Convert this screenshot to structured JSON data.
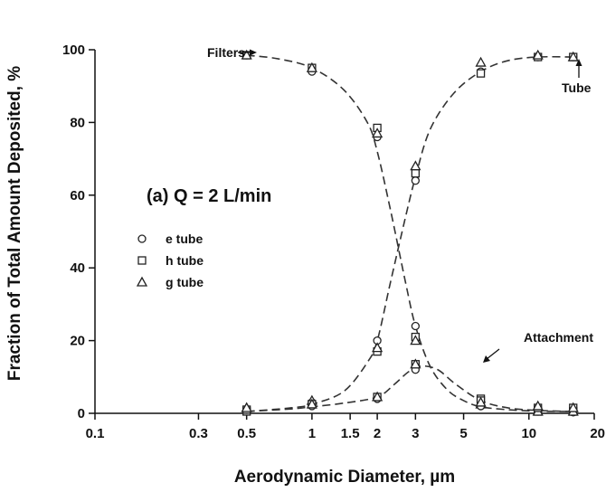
{
  "chart_data": {
    "type": "scatter",
    "xlabel": "Aerodynamic Diameter, µm",
    "ylabel": "Fraction of Total Amount Deposited, %",
    "xscale": "log",
    "xlim": [
      0.1,
      20
    ],
    "ylim": [
      0,
      100
    ],
    "xticks": [
      0.1,
      0.3,
      0.5,
      1,
      1.5,
      2,
      3,
      5,
      10,
      20
    ],
    "xtick_labels": [
      "0.1",
      "0.3",
      "0.5",
      "1",
      "1.5",
      "2",
      "3",
      "5",
      "10",
      "20"
    ],
    "yticks": [
      0,
      20,
      40,
      60,
      80,
      100
    ],
    "ytick_labels": [
      "0",
      "20",
      "40",
      "60",
      "80",
      "100"
    ],
    "condition_label": "(a) Q = 2 L/min",
    "legend": {
      "placement": "left",
      "entries": [
        {
          "marker": "circle",
          "label": "e tube"
        },
        {
          "marker": "square",
          "label": "h tube"
        },
        {
          "marker": "triangle",
          "label": "g tube"
        }
      ]
    },
    "annotations": [
      {
        "text": "Filters",
        "x": 0.5,
        "y": 98.5
      },
      {
        "text": "Tube",
        "x": 16,
        "y": 98
      },
      {
        "text": "Attachment",
        "x": 6,
        "y": 16
      }
    ],
    "x": [
      0.5,
      1,
      2,
      3,
      6,
      11,
      16
    ],
    "series": [
      {
        "name": "e tube",
        "group": "Filters",
        "marker": "circle",
        "values": [
          98.5,
          94,
          76,
          24,
          2,
          0.5,
          0.3
        ]
      },
      {
        "name": "h tube",
        "group": "Filters",
        "marker": "square",
        "values": [
          98.5,
          95,
          78.5,
          21,
          4,
          0.5,
          0.5
        ]
      },
      {
        "name": "g tube",
        "group": "Filters",
        "marker": "triangle",
        "values": [
          98.5,
          95,
          77,
          20,
          2.5,
          0.5,
          0.5
        ]
      },
      {
        "name": "e tube",
        "group": "Tube",
        "marker": "circle",
        "values": [
          0.5,
          3,
          20,
          64,
          94,
          98,
          98
        ]
      },
      {
        "name": "h tube",
        "group": "Tube",
        "marker": "square",
        "values": [
          0.5,
          2.5,
          17,
          66,
          93.5,
          98,
          98
        ]
      },
      {
        "name": "g tube",
        "group": "Tube",
        "marker": "triangle",
        "values": [
          1.5,
          3.5,
          18,
          68,
          96.5,
          98.5,
          98
        ]
      },
      {
        "name": "e tube",
        "group": "Attachment",
        "marker": "circle",
        "values": [
          1,
          2,
          4,
          12,
          2,
          1.5,
          1.5
        ]
      },
      {
        "name": "h tube",
        "group": "Attachment",
        "marker": "square",
        "values": [
          1,
          2.5,
          4.5,
          13.5,
          3.5,
          1.5,
          1.5
        ]
      },
      {
        "name": "g tube",
        "group": "Attachment",
        "marker": "triangle",
        "values": [
          1.5,
          2.5,
          4.5,
          13.5,
          3,
          2,
          1.5
        ]
      }
    ],
    "fit_curves": [
      {
        "group": "Filters",
        "style": "dashed",
        "x": [
          0.5,
          0.7,
          1,
          1.4,
          1.8,
          2,
          2.3,
          2.7,
          3,
          3.5,
          4.2,
          5,
          6,
          8,
          11,
          16
        ],
        "values": [
          98.5,
          97.5,
          95,
          89,
          80,
          72,
          56,
          36,
          24,
          13,
          6.5,
          3.5,
          1.8,
          1,
          0.6,
          0.5
        ]
      },
      {
        "group": "Tube",
        "style": "dashed",
        "x": [
          0.5,
          0.8,
          1,
          1.4,
          1.8,
          2,
          2.3,
          2.7,
          3,
          3.5,
          4.5,
          6,
          8,
          11,
          16
        ],
        "values": [
          0.5,
          1.5,
          2.5,
          6,
          14,
          20,
          36,
          54,
          65,
          78,
          88,
          94,
          97,
          98,
          98
        ]
      },
      {
        "group": "Attachment",
        "style": "dashed",
        "x": [
          0.5,
          0.8,
          1,
          1.4,
          2,
          2.4,
          2.8,
          3.2,
          3.8,
          4.6,
          6,
          8,
          11,
          16
        ],
        "values": [
          0.5,
          1.2,
          1.8,
          2.8,
          4.5,
          8,
          11.5,
          13,
          12,
          8,
          3.5,
          1.5,
          0.8,
          0.5
        ]
      }
    ]
  }
}
